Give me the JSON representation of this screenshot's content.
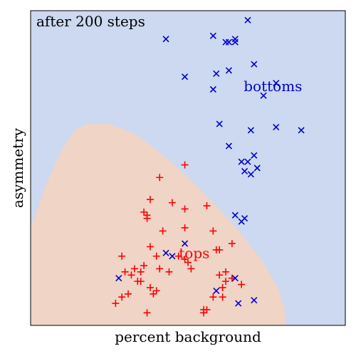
{
  "chart_data": {
    "type": "scatter",
    "title": "",
    "annotation": "after 200 steps",
    "xlabel": "percent background",
    "ylabel": "asymmetry",
    "xlim": [
      0,
      1
    ],
    "ylim": [
      0,
      1
    ],
    "show_ticks": false,
    "grid": false,
    "background_color": "#ccd9f0",
    "region_color": "#f0d4c6",
    "region_name": "tops",
    "region_boundary": [
      [
        0.0,
        0.31
      ],
      [
        0.05,
        0.45
      ],
      [
        0.1,
        0.56
      ],
      [
        0.14,
        0.62
      ],
      [
        0.18,
        0.64
      ],
      [
        0.25,
        0.64
      ],
      [
        0.33,
        0.61
      ],
      [
        0.41,
        0.55
      ],
      [
        0.5,
        0.47
      ],
      [
        0.59,
        0.38
      ],
      [
        0.67,
        0.29
      ],
      [
        0.74,
        0.2
      ],
      [
        0.79,
        0.11
      ],
      [
        0.81,
        0.04
      ],
      [
        0.81,
        0.0
      ],
      [
        0.0,
        0.0
      ]
    ],
    "series": [
      {
        "name": "tops",
        "marker": "+",
        "color": "#ff0000",
        "label_pos": [
          0.52,
          0.23
        ],
        "points": [
          [
            0.49,
            0.51
          ],
          [
            0.41,
            0.47
          ],
          [
            0.38,
            0.4
          ],
          [
            0.45,
            0.39
          ],
          [
            0.49,
            0.37
          ],
          [
            0.56,
            0.38
          ],
          [
            0.36,
            0.36
          ],
          [
            0.37,
            0.35
          ],
          [
            0.37,
            0.34
          ],
          [
            0.49,
            0.31
          ],
          [
            0.42,
            0.3
          ],
          [
            0.58,
            0.3
          ],
          [
            0.64,
            0.26
          ],
          [
            0.38,
            0.25
          ],
          [
            0.6,
            0.24
          ],
          [
            0.59,
            0.24
          ],
          [
            0.29,
            0.22
          ],
          [
            0.4,
            0.22
          ],
          [
            0.47,
            0.22
          ],
          [
            0.49,
            0.21
          ],
          [
            0.5,
            0.2
          ],
          [
            0.36,
            0.19
          ],
          [
            0.41,
            0.18
          ],
          [
            0.51,
            0.18
          ],
          [
            0.33,
            0.18
          ],
          [
            0.3,
            0.17
          ],
          [
            0.35,
            0.17
          ],
          [
            0.44,
            0.17
          ],
          [
            0.32,
            0.16
          ],
          [
            0.62,
            0.17
          ],
          [
            0.6,
            0.16
          ],
          [
            0.64,
            0.15
          ],
          [
            0.35,
            0.14
          ],
          [
            0.34,
            0.14
          ],
          [
            0.62,
            0.14
          ],
          [
            0.67,
            0.13
          ],
          [
            0.61,
            0.12
          ],
          [
            0.38,
            0.12
          ],
          [
            0.4,
            0.11
          ],
          [
            0.31,
            0.1
          ],
          [
            0.39,
            0.1
          ],
          [
            0.61,
            0.09
          ],
          [
            0.29,
            0.09
          ],
          [
            0.58,
            0.09
          ],
          [
            0.27,
            0.07
          ],
          [
            0.55,
            0.05
          ],
          [
            0.37,
            0.04
          ],
          [
            0.55,
            0.04
          ],
          [
            0.56,
            0.05
          ]
        ]
      },
      {
        "name": "bottoms",
        "marker": "x",
        "color": "#0000cc",
        "label_pos": [
          0.77,
          0.76
        ],
        "points": [
          [
            0.69,
            0.97
          ],
          [
            0.58,
            0.92
          ],
          [
            0.43,
            0.91
          ],
          [
            0.62,
            0.9
          ],
          [
            0.65,
            0.9
          ],
          [
            0.63,
            0.9
          ],
          [
            0.65,
            0.91
          ],
          [
            0.71,
            0.83
          ],
          [
            0.63,
            0.81
          ],
          [
            0.59,
            0.8
          ],
          [
            0.49,
            0.79
          ],
          [
            0.78,
            0.77
          ],
          [
            0.58,
            0.75
          ],
          [
            0.74,
            0.73
          ],
          [
            0.6,
            0.64
          ],
          [
            0.7,
            0.62
          ],
          [
            0.78,
            0.63
          ],
          [
            0.86,
            0.62
          ],
          [
            0.63,
            0.57
          ],
          [
            0.71,
            0.54
          ],
          [
            0.69,
            0.52
          ],
          [
            0.67,
            0.52
          ],
          [
            0.72,
            0.5
          ],
          [
            0.68,
            0.49
          ],
          [
            0.7,
            0.48
          ],
          [
            0.65,
            0.35
          ],
          [
            0.68,
            0.34
          ],
          [
            0.67,
            0.33
          ],
          [
            0.49,
            0.26
          ],
          [
            0.43,
            0.23
          ],
          [
            0.45,
            0.22
          ],
          [
            0.28,
            0.15
          ],
          [
            0.65,
            0.15
          ],
          [
            0.59,
            0.11
          ],
          [
            0.71,
            0.08
          ],
          [
            0.66,
            0.07
          ]
        ]
      }
    ]
  }
}
